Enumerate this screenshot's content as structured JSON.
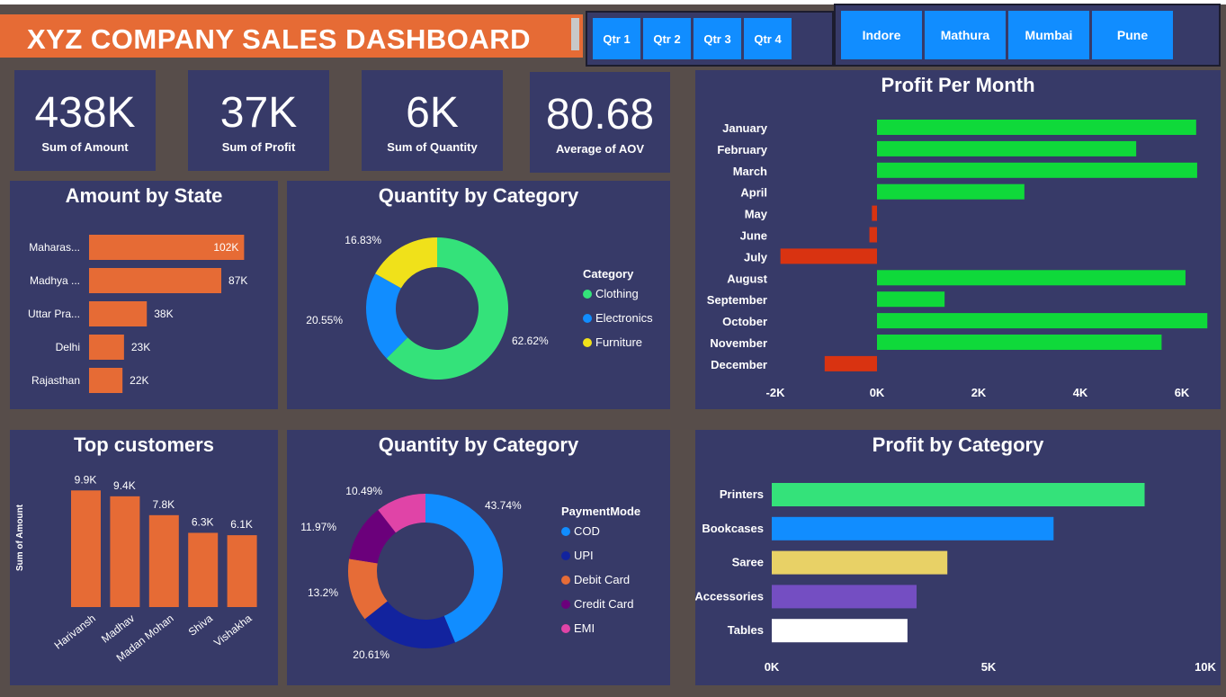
{
  "header": {
    "title": "XYZ COMPANY SALES DASHBOARD"
  },
  "quarters": [
    "Qtr 1",
    "Qtr 2",
    "Qtr 3",
    "Qtr 4"
  ],
  "cities": [
    "Indore",
    "Mathura",
    "Mumbai",
    "Pune"
  ],
  "kpis": [
    {
      "value": "438K",
      "label": "Sum of Amount"
    },
    {
      "value": "37K",
      "label": "Sum of Profit"
    },
    {
      "value": "6K",
      "label": "Sum of Quantity"
    },
    {
      "value": "80.68",
      "label": "Average of AOV"
    }
  ],
  "colors": {
    "orange": "#e66b35",
    "panel": "#373a68",
    "background": "#574d4a",
    "green": "#0fd93a",
    "red": "#d93311"
  },
  "chart_data": [
    {
      "id": "state",
      "type": "bar",
      "orientation": "horizontal",
      "title": "Amount by State",
      "categories": [
        "Maharas...",
        "Madhya ...",
        "Uttar Pra...",
        "Delhi",
        "Rajasthan"
      ],
      "values": [
        102,
        87,
        38,
        23,
        22
      ],
      "labels": [
        "102K",
        "87K",
        "38K",
        "23K",
        "22K"
      ],
      "color": "#e66b35"
    },
    {
      "id": "catpie",
      "type": "pie",
      "donut": true,
      "title": "Quantity by Category",
      "legend_title": "Category",
      "legend": "right",
      "categories": [
        "Clothing",
        "Electronics",
        "Furniture"
      ],
      "values": [
        62.62,
        20.55,
        16.83
      ],
      "labels": [
        "62.62%",
        "20.55%",
        "16.83%"
      ],
      "colors": [
        "#34e27a",
        "#118dff",
        "#f0e11a"
      ]
    },
    {
      "id": "month",
      "type": "bar",
      "orientation": "horizontal",
      "title": "Profit Per Month",
      "categories": [
        "January",
        "February",
        "March",
        "April",
        "May",
        "June",
        "July",
        "August",
        "September",
        "October",
        "November",
        "December"
      ],
      "values": [
        6.28,
        5.1,
        6.3,
        2.9,
        -0.1,
        -0.15,
        -1.9,
        6.07,
        1.33,
        6.5,
        5.6,
        -1.03
      ],
      "xlim": [
        -2,
        6.6
      ],
      "ticks": [
        "-2K",
        "0K",
        "2K",
        "4K",
        "6K"
      ],
      "tick_values": [
        -2,
        0,
        2,
        4,
        6
      ],
      "units": "K",
      "pos_color": "#0fd93a",
      "neg_color": "#d93311"
    },
    {
      "id": "cust",
      "type": "bar",
      "title": "Top customers",
      "ylabel": "Sum of Amount",
      "categories": [
        "Harivansh",
        "Madhav",
        "Madan Mohan",
        "Shiva",
        "Vishakha"
      ],
      "values": [
        9.9,
        9.4,
        7.8,
        6.3,
        6.1
      ],
      "labels": [
        "9.9K",
        "9.4K",
        "7.8K",
        "6.3K",
        "6.1K"
      ],
      "color": "#e66b35"
    },
    {
      "id": "paypie",
      "type": "pie",
      "donut": true,
      "title": "Quantity by Category",
      "legend_title": "PaymentMode",
      "legend": "right",
      "categories": [
        "COD",
        "UPI",
        "Debit Card",
        "Credit Card",
        "EMI"
      ],
      "values": [
        43.74,
        20.61,
        13.2,
        11.97,
        10.49
      ],
      "labels": [
        "43.74%",
        "20.61%",
        "13.2%",
        "11.97%",
        "10.49%"
      ],
      "colors": [
        "#118dff",
        "#12239e",
        "#e66c37",
        "#6b007b",
        "#e044a7"
      ]
    },
    {
      "id": "pcat",
      "type": "bar",
      "orientation": "horizontal",
      "title": "Profit by Category",
      "categories": [
        "Printers",
        "Bookcases",
        "Saree",
        "Accessories",
        "Tables"
      ],
      "values": [
        8.6,
        6.5,
        4.05,
        3.34,
        3.13
      ],
      "xlim": [
        0,
        10
      ],
      "ticks": [
        "0K",
        "5K",
        "10K"
      ],
      "tick_values": [
        0,
        5,
        10
      ],
      "colors": [
        "#34e27a",
        "#118dff",
        "#e8d166",
        "#744ec2",
        "#ffffff"
      ]
    }
  ]
}
